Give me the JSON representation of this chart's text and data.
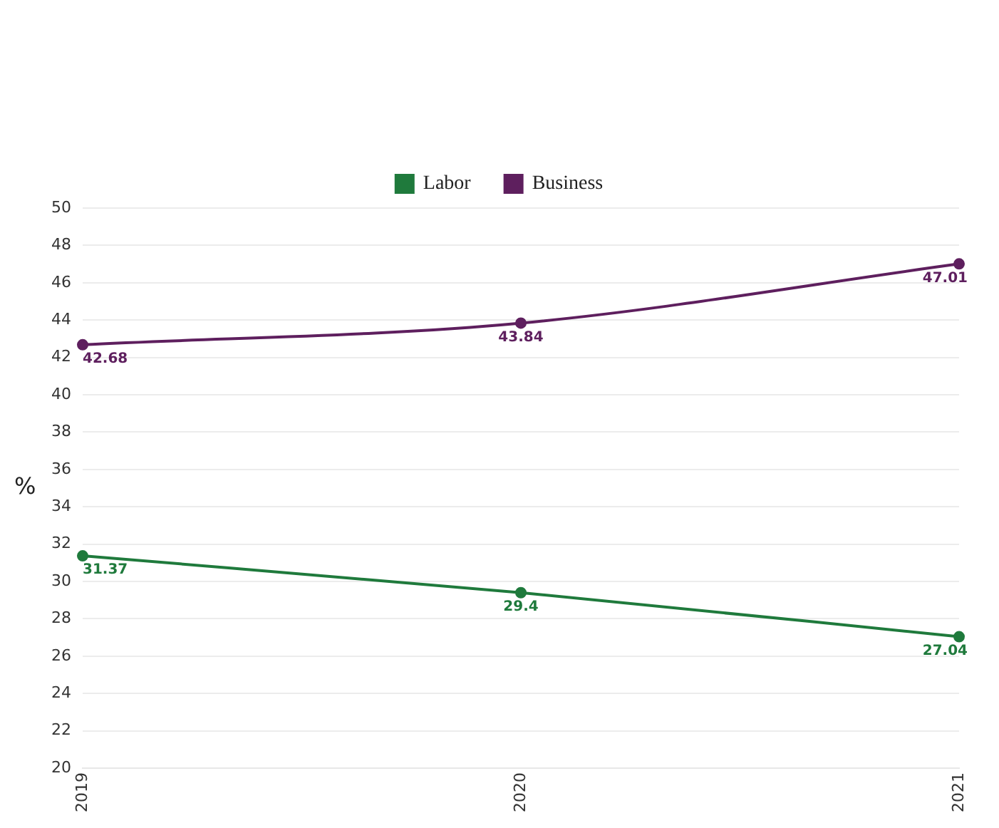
{
  "chart_data": {
    "type": "line",
    "ylabel": "%",
    "categories": [
      "2019",
      "2020",
      "2021"
    ],
    "series": [
      {
        "name": "Labor",
        "color": "#1f7a3c",
        "values": [
          31.37,
          29.4,
          27.04
        ]
      },
      {
        "name": "Business",
        "color": "#5e1f5e",
        "values": [
          42.68,
          43.84,
          47.01
        ]
      }
    ],
    "ylim": [
      20,
      50
    ],
    "yticks": [
      20,
      22,
      24,
      26,
      28,
      30,
      32,
      34,
      36,
      38,
      40,
      42,
      44,
      46,
      48,
      50
    ],
    "grid": "y",
    "legend": "top",
    "marker": "circle",
    "line_style": "solid",
    "data_labels": true
  }
}
